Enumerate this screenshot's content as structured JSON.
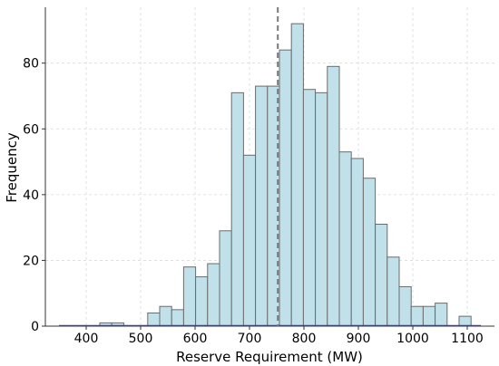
{
  "chart_data": {
    "type": "bar",
    "subtype": "histogram",
    "xlabel": "Reserve Requirement (MW)",
    "ylabel": "Frequency",
    "xlim": [
      325,
      1150
    ],
    "ylim": [
      0,
      97
    ],
    "xticks": [
      400,
      500,
      600,
      700,
      800,
      900,
      1000,
      1100
    ],
    "yticks": [
      0,
      20,
      40,
      60,
      80
    ],
    "grid": true,
    "bin_start": 425,
    "bin_width": 22,
    "counts": [
      1,
      1,
      0,
      0,
      4,
      6,
      5,
      18,
      15,
      19,
      29,
      71,
      52,
      73,
      73,
      84,
      92,
      72,
      71,
      79,
      53,
      51,
      45,
      31,
      21,
      12,
      6,
      6,
      7,
      0,
      3
    ],
    "mean_line_x": 752,
    "baseline_range": [
      350,
      1125
    ],
    "colors": {
      "bar_fill": "#c1e1ea",
      "bar_edge": "#6b6b6b",
      "mean_line": "#7a7a7a",
      "baseline": "#3b3b8f"
    }
  }
}
